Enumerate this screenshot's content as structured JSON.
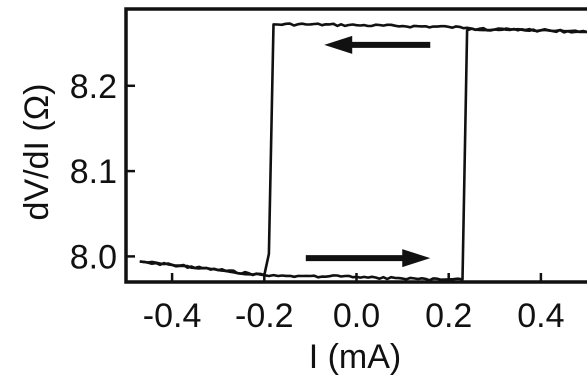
{
  "chart_data": {
    "type": "line",
    "title": "",
    "xlabel": "I (mA)",
    "ylabel": "dV/dI (Ω)",
    "xlim": [
      -0.5,
      0.5
    ],
    "ylim": [
      7.97,
      8.29
    ],
    "x_ticks": [
      -0.4,
      -0.2,
      0.0,
      0.2,
      0.4
    ],
    "x_tick_labels": [
      "-0.4",
      "-0.2",
      "0.0",
      "0.2",
      "0.4"
    ],
    "y_ticks": [
      8.0,
      8.1,
      8.2
    ],
    "y_tick_labels": [
      "8.0",
      "8.1",
      "8.2"
    ],
    "grid": false,
    "legend": "none",
    "colors": {
      "line": "#111111",
      "background": "#ffffff"
    },
    "series": [
      {
        "x": [
          -0.47,
          -0.4,
          -0.3,
          -0.2,
          -0.19,
          -0.18,
          -0.1,
          0.0,
          0.1,
          0.2,
          0.24,
          0.25,
          0.3,
          0.4,
          0.5
        ],
        "y": [
          7.994,
          7.99,
          7.984,
          7.978,
          8.003,
          8.272,
          8.272,
          8.271,
          8.27,
          8.269,
          8.268,
          8.267,
          8.266,
          8.265,
          8.263
        ]
      },
      {
        "x": [
          0.5,
          0.4,
          0.3,
          0.25,
          0.24,
          0.23,
          0.2,
          0.1,
          0.0,
          -0.1,
          -0.17,
          -0.2,
          -0.3,
          -0.4,
          -0.47
        ],
        "y": [
          8.263,
          8.265,
          8.266,
          8.267,
          8.265,
          7.973,
          7.973,
          7.974,
          7.976,
          7.977,
          7.977,
          7.978,
          7.984,
          7.99,
          7.994
        ]
      }
    ],
    "annotations": [
      {
        "type": "arrow",
        "direction": "left",
        "x_from": 0.16,
        "x_to": -0.07,
        "y": 8.248
      },
      {
        "type": "arrow",
        "direction": "right",
        "x_from": -0.11,
        "x_to": 0.16,
        "y": 7.998
      }
    ]
  }
}
